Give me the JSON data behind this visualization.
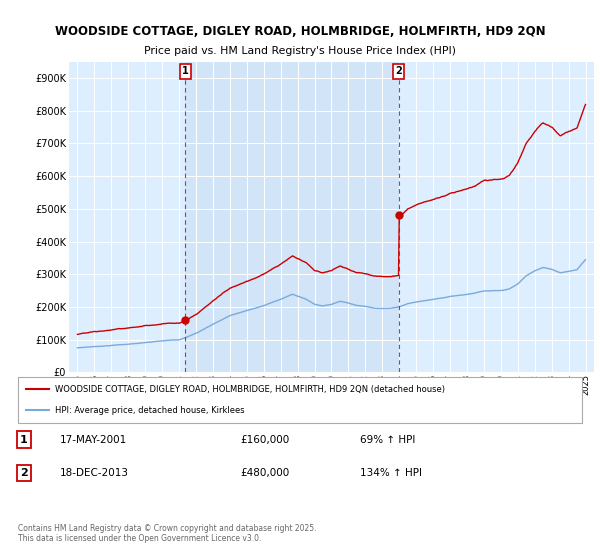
{
  "title_line1": "WOODSIDE COTTAGE, DIGLEY ROAD, HOLMBRIDGE, HOLMFIRTH, HD9 2QN",
  "title_line2": "Price paid vs. HM Land Registry's House Price Index (HPI)",
  "ylabel_ticks": [
    "£0",
    "£100K",
    "£200K",
    "£300K",
    "£400K",
    "£500K",
    "£600K",
    "£700K",
    "£800K",
    "£900K"
  ],
  "ytick_values": [
    0,
    100000,
    200000,
    300000,
    400000,
    500000,
    600000,
    700000,
    800000,
    900000
  ],
  "ylim": [
    0,
    950000
  ],
  "xlim_start": 1994.5,
  "xlim_end": 2025.5,
  "legend_line1": "WOODSIDE COTTAGE, DIGLEY ROAD, HOLMBRIDGE, HOLMFIRTH, HD9 2QN (detached house)",
  "legend_line2": "HPI: Average price, detached house, Kirklees",
  "sale1_label": "1",
  "sale1_date": "17-MAY-2001",
  "sale1_price": "£160,000",
  "sale1_hpi": "69% ↑ HPI",
  "sale1_year": 2001.37,
  "sale1_value": 160000,
  "sale2_label": "2",
  "sale2_date": "18-DEC-2013",
  "sale2_price": "£480,000",
  "sale2_hpi": "134% ↑ HPI",
  "sale2_year": 2013.96,
  "sale2_value": 480000,
  "red_color": "#cc0000",
  "blue_color": "#7aaadd",
  "shade_color": "#d8e8f8",
  "background_color": "#ddeeff",
  "footer_text": "Contains HM Land Registry data © Crown copyright and database right 2025.\nThis data is licensed under the Open Government Licence v3.0.",
  "xtick_years": [
    1995,
    1996,
    1997,
    1998,
    1999,
    2000,
    2001,
    2002,
    2003,
    2004,
    2005,
    2006,
    2007,
    2008,
    2009,
    2010,
    2011,
    2012,
    2013,
    2014,
    2015,
    2016,
    2017,
    2018,
    2019,
    2020,
    2021,
    2022,
    2023,
    2024,
    2025
  ]
}
